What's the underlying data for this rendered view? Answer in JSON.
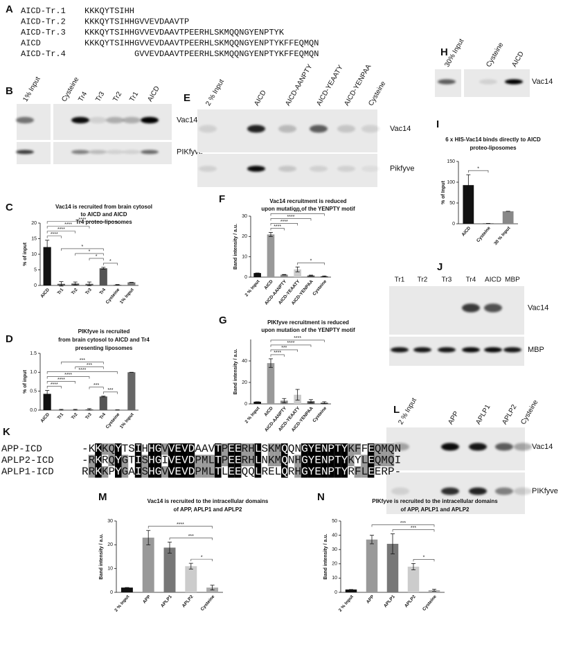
{
  "panel_a": {
    "letter": "A",
    "rows": [
      {
        "name": "AICD-Tr.1",
        "sequence": "KKKQYTSIHH"
      },
      {
        "name": "AICD-Tr.2",
        "sequence": "KKKQYTSIHHGVVEVDAAVTP"
      },
      {
        "name": "AICD-Tr.3",
        "sequence": "KKKQYTSIHHGVVEVDAAVTPEERHLSKMQQNGYENPTYK"
      },
      {
        "name": "AICD",
        "sequence": "KKKQYTSIHHGVVEVDAAVTPEERHLSKMQQNGYENPTYKFFEQMQN"
      },
      {
        "name": "AICD-Tr.4",
        "sequence": "GVVEVDAAVTPEERHLSKMQQNGYENPTYKFFEQMQN"
      }
    ]
  },
  "panel_b": {
    "letter": "B",
    "lanes": [
      "1% Input",
      "Cysteine",
      "Tr4",
      "Tr3",
      "Tr2",
      "Tr1",
      "AICD"
    ],
    "rows": [
      "Vac14",
      "PIKfyve"
    ]
  },
  "panel_e": {
    "letter": "E",
    "lanes": [
      "2 % Input",
      "AICD",
      "AICD-AANPTY",
      "AICD-YEAATY",
      "AICD-YENPAA",
      "Cysteine"
    ],
    "rows": [
      "Vac14",
      "Pikfyve"
    ]
  },
  "panel_h": {
    "letter": "H",
    "lanes": [
      "30% Input",
      "Cysteine",
      "AICD"
    ],
    "rows": [
      "Vac14"
    ]
  },
  "panel_j": {
    "letter": "J",
    "lanes": [
      "Tr1",
      "Tr2",
      "Tr3",
      "Tr4",
      "AICD",
      "MBP"
    ],
    "rows": [
      "Vac14",
      "MBP"
    ]
  },
  "panel_l": {
    "letter": "L",
    "lanes": [
      "2 % Input",
      "APP",
      "APLP1",
      "APLP2",
      "Cysteine"
    ],
    "rows": [
      "Vac14",
      "PIKfyve"
    ]
  },
  "panel_k": {
    "letter": "K",
    "rows": [
      {
        "name": "APP-ICD",
        "sequence": "-KKKQYTSIHHGVVEVDAAVTPEERHLSKMQQNGYENPTYKFFEQMQN"
      },
      {
        "name": "APLP2-ICD",
        "sequence": "-RKRQYGTISHGIVEVDPMLTPEERHLNKMQNHGYENPTYKYLEQMQI"
      },
      {
        "name": "APLP1-ICD",
        "sequence": "RRKKPYGAISHGVVEVDPMLTLEEQQLRELQRHGYENPTYRFLEERP-"
      }
    ]
  },
  "chart_data": [
    {
      "type": "bar",
      "letter": "C",
      "title_lines": [
        "Vac14 is recruited from brain cytosol",
        "to AICD and AICD",
        "Tr4 proteo-liposomes"
      ],
      "ylabel": "% of input",
      "categories": [
        "AICD",
        "Tr1",
        "Tr2",
        "Tr3",
        "Tr4",
        "Cysteine",
        "1% Input"
      ],
      "values": [
        12.3,
        0.5,
        0.6,
        0.5,
        5.5,
        0.2,
        1.0
      ],
      "errors": [
        2.2,
        0.7,
        0.5,
        0.6,
        0.3,
        0.1,
        0
      ],
      "colors": [
        "#111111",
        "#555555",
        "#555555",
        "#555555",
        "#555555",
        "#555555",
        "#777777"
      ],
      "ylim": [
        0,
        20
      ],
      "yticks": [
        0,
        5,
        10,
        15,
        20
      ],
      "brackets": [
        {
          "from": "AICD",
          "to": "Tr1",
          "label": "****"
        },
        {
          "from": "AICD",
          "to": "Tr2",
          "label": "****"
        },
        {
          "from": "AICD",
          "to": "Tr3",
          "label": "****"
        },
        {
          "from": "AICD",
          "to": "Cysteine",
          "label": "****"
        },
        {
          "from": "Tr4",
          "to": "Cysteine",
          "label": "*"
        },
        {
          "from": "Tr3",
          "to": "Tr4",
          "label": "*"
        },
        {
          "from": "Tr2",
          "to": "Tr4",
          "label": "*"
        },
        {
          "from": "Tr1",
          "to": "Tr4",
          "label": "*"
        }
      ]
    },
    {
      "type": "bar",
      "letter": "D",
      "title_lines": [
        "PIKfyve is recruited",
        "from brain cytosol to AICD and Tr4",
        "presenting liposomes"
      ],
      "ylabel": "% of input",
      "categories": [
        "AICD",
        "Tr1",
        "Tr2",
        "Tr3",
        "Tr4",
        "Cysteine",
        "1% Input"
      ],
      "values": [
        0.43,
        0.01,
        0.01,
        0.02,
        0.36,
        0.005,
        1.0
      ],
      "errors": [
        0.09,
        0.01,
        0.01,
        0.02,
        0.01,
        0.005,
        0
      ],
      "colors": [
        "#111111",
        "#555555",
        "#555555",
        "#555555",
        "#555555",
        "#555555",
        "#666666"
      ],
      "ylim": [
        0,
        1.5
      ],
      "yticks": [
        {
          "value": 0,
          "label": "0.0"
        },
        {
          "value": 0.5,
          "label": "0.5"
        },
        {
          "value": 1,
          "label": "1.0"
        },
        {
          "value": 1.5,
          "label": "1.5"
        }
      ],
      "brackets": [
        {
          "from": "AICD",
          "to": "Tr1",
          "label": "****"
        },
        {
          "from": "AICD",
          "to": "Tr2",
          "label": "****"
        },
        {
          "from": "AICD",
          "to": "Tr3",
          "label": "****"
        },
        {
          "from": "AICD",
          "to": "Cysteine",
          "label": "****"
        },
        {
          "from": "Tr4",
          "to": "Cysteine",
          "label": "***"
        },
        {
          "from": "Tr3",
          "to": "Tr4",
          "label": "***"
        },
        {
          "from": "Tr2",
          "to": "Tr4",
          "label": "***"
        },
        {
          "from": "Tr1",
          "to": "Tr4",
          "label": "***"
        }
      ]
    },
    {
      "type": "bar",
      "letter": "F",
      "title_lines": [
        "Vac14 recruitment is reduced",
        "upon mutation of the YENPTY motif"
      ],
      "ylabel": "Band intensity / a.u.",
      "categories": [
        "2 % Input",
        "AICD",
        "AICD-AANPTY",
        "AICD-YEAATY",
        "AICD-YENPAA",
        "Cysteine"
      ],
      "values": [
        2,
        21,
        1.2,
        3.8,
        0.8,
        0.4
      ],
      "errors": [
        0,
        1,
        0.1,
        1.2,
        0.2,
        0.2
      ],
      "colors": [
        "#111111",
        "#999999",
        "#888888",
        "#cccccc",
        "#555555",
        "#333333"
      ],
      "ylim": [
        0,
        30
      ],
      "yticks": [
        0,
        10,
        20,
        30
      ],
      "brackets": [
        {
          "from": "AICD",
          "to": "AICD-AANPTY",
          "label": "****"
        },
        {
          "from": "AICD",
          "to": "AICD-YEAATY",
          "label": "****"
        },
        {
          "from": "AICD",
          "to": "AICD-YENPAA",
          "label": "****"
        },
        {
          "from": "AICD",
          "to": "Cysteine",
          "label": "****"
        },
        {
          "from": "AICD-YEAATY",
          "to": "Cysteine",
          "label": "*"
        }
      ]
    },
    {
      "type": "bar",
      "letter": "G",
      "title_lines": [
        "PIKfyve recruitment is reduced",
        "upon mutation of the YENPTY motif"
      ],
      "ylabel": "Band intensity / a.u.",
      "categories": [
        "2 % Input",
        "AICD",
        "AICD-AANPTY",
        "AICD-YEAATY",
        "AICD-YENPAA",
        "Cysteine"
      ],
      "values": [
        2,
        38,
        3,
        8.5,
        2.5,
        1
      ],
      "errors": [
        0,
        4,
        2,
        5,
        1.5,
        1
      ],
      "colors": [
        "#111111",
        "#999999",
        "#888888",
        "#cccccc",
        "#555555",
        "#333333"
      ],
      "ylim": [
        0,
        60
      ],
      "yticks": [
        0,
        20,
        40
      ],
      "brackets": [
        {
          "from": "AICD",
          "to": "AICD-AANPTY",
          "label": "****"
        },
        {
          "from": "AICD",
          "to": "AICD-YEAATY",
          "label": "***"
        },
        {
          "from": "AICD",
          "to": "AICD-YENPAA",
          "label": "****"
        },
        {
          "from": "AICD",
          "to": "Cysteine",
          "label": "****"
        }
      ]
    },
    {
      "type": "bar",
      "letter": "I",
      "title_lines": [
        "6 x HIS-Vac14 binds directly to AICD",
        "proteo-liposomes"
      ],
      "ylabel": "% of Input",
      "categories": [
        "AICD",
        "Cysteine",
        "30 % Input"
      ],
      "values": [
        93,
        1,
        30
      ],
      "errors": [
        25,
        0,
        0
      ],
      "colors": [
        "#111111",
        "#333333",
        "#888888"
      ],
      "ylim": [
        0,
        150
      ],
      "yticks": [
        0,
        50,
        100,
        150
      ],
      "brackets": [
        {
          "from": "AICD",
          "to": "Cysteine",
          "label": "*"
        }
      ]
    },
    {
      "type": "bar",
      "letter": "M",
      "title_lines": [
        "Vac14 is recruited to the intracellular domains",
        "of APP, APLP1 and APLP2"
      ],
      "ylabel": "Band intensity / a.u.",
      "categories": [
        "2 % Input",
        "APP",
        "APLP1",
        "APLP2",
        "Cysteine"
      ],
      "values": [
        2,
        23,
        18.8,
        11,
        2
      ],
      "errors": [
        0,
        3,
        2.3,
        1.2,
        1
      ],
      "colors": [
        "#111111",
        "#999999",
        "#777777",
        "#cccccc",
        "#aaaaaa"
      ],
      "ylim": [
        0,
        30
      ],
      "yticks": [
        0,
        10,
        20,
        30
      ],
      "brackets": [
        {
          "from": "APLP2",
          "to": "Cysteine",
          "label": "*"
        },
        {
          "from": "APLP1",
          "to": "Cysteine",
          "label": "***"
        },
        {
          "from": "APP",
          "to": "Cysteine",
          "label": "****"
        }
      ]
    },
    {
      "type": "bar",
      "letter": "N",
      "title_lines": [
        "PIKfyve is recruited to the intracellular domains",
        "of APP,  APLP1 and APLP2"
      ],
      "ylabel": "Band intensity / a.u.",
      "categories": [
        "2 % Input",
        "APP",
        "APLP1",
        "APLP2",
        "Cysteine"
      ],
      "values": [
        2,
        37,
        34,
        18,
        1.5
      ],
      "errors": [
        0,
        3,
        7,
        2.2,
        0.7
      ],
      "colors": [
        "#111111",
        "#999999",
        "#777777",
        "#cccccc",
        "#aaaaaa"
      ],
      "ylim": [
        0,
        50
      ],
      "yticks": [
        0,
        10,
        20,
        30,
        40,
        50
      ],
      "brackets": [
        {
          "from": "APLP2",
          "to": "Cysteine",
          "label": "*"
        },
        {
          "from": "APLP1",
          "to": "Cysteine",
          "label": "***"
        },
        {
          "from": "APP",
          "to": "Cysteine",
          "label": "***"
        }
      ]
    }
  ]
}
